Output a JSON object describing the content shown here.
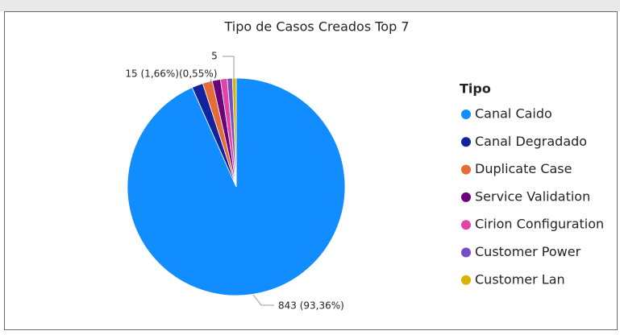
{
  "chart_data": {
    "type": "pie",
    "title": "Tipo de Casos Creados Top 7",
    "legend_title": "Tipo",
    "legend": "right",
    "categories": [
      "Canal Caido",
      "Canal Degradado",
      "Duplicate Case",
      "Service Validation",
      "Cirion Configuration",
      "Customer Power",
      "Customer Lan"
    ],
    "values": [
      843,
      15,
      13,
      11,
      9,
      7,
      5
    ],
    "value_labels": [
      "843 (93,36%)",
      "15 (1,66%)",
      null,
      null,
      null,
      null,
      [
        "5",
        "(0,55%)"
      ]
    ],
    "colors": [
      "#118DFF",
      "#12239E",
      "#E66C37",
      "#6B007B",
      "#E044A7",
      "#744EC2",
      "#D9B300"
    ]
  }
}
